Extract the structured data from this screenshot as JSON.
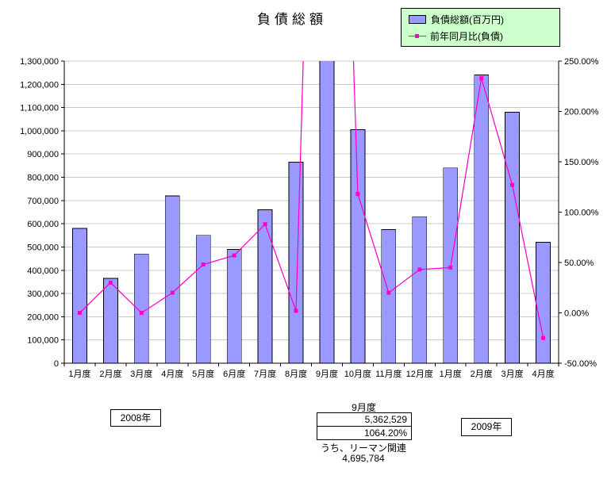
{
  "title": "負債総額",
  "legend": {
    "items": [
      {
        "label": "負債総額(百万円)",
        "type": "bar",
        "color": "#9999ff"
      },
      {
        "label": "前年同月比(負債)",
        "type": "line",
        "color": "#ff00cc"
      }
    ]
  },
  "chart_data": {
    "type": "bar",
    "subtype": "bar-with-line-overlay",
    "title": "負債総額",
    "grid": true,
    "legend_position": "top-right",
    "categories": [
      "1月度",
      "2月度",
      "3月度",
      "4月度",
      "5月度",
      "6月度",
      "7月度",
      "8月度",
      "9月度",
      "10月度",
      "11月度",
      "12月度",
      "1月度",
      "2月度",
      "3月度",
      "4月度"
    ],
    "series": [
      {
        "name": "負債総額(百万円)",
        "type": "bar",
        "axis": "left",
        "color": "#9999ff",
        "values": [
          580000,
          365000,
          470000,
          720000,
          550000,
          490000,
          660000,
          865000,
          5362529,
          1005000,
          575000,
          630000,
          840000,
          1240000,
          1080000,
          520000
        ]
      },
      {
        "name": "前年同月比(負債)",
        "type": "line",
        "axis": "right",
        "color": "#ff00cc",
        "values": [
          0,
          30,
          0,
          20,
          48,
          57,
          88,
          2,
          1064.2,
          118,
          20,
          43,
          45,
          233,
          127,
          -25
        ]
      }
    ],
    "left_axis": {
      "min": 0,
      "max": 1300000,
      "step": 100000,
      "tick_labels": [
        "0",
        "100,000",
        "200,000",
        "300,000",
        "400,000",
        "500,000",
        "600,000",
        "700,000",
        "800,000",
        "900,000",
        "1,000,000",
        "1,100,000",
        "1,200,000",
        "1,300,000"
      ]
    },
    "right_axis": {
      "min": -50,
      "max": 250,
      "step": 50,
      "tick_labels": [
        "-50.00%",
        "0.00%",
        "50.00%",
        "100.00%",
        "150.00%",
        "200.00%",
        "250.00%"
      ]
    }
  },
  "annotations": {
    "left_year_box": "2008年",
    "right_year_box": "2009年",
    "callout": {
      "month": "9月度",
      "amount": "5,362,529",
      "pct": "1064.20%",
      "note_label": "うち、リーマン関連",
      "note_value": "4,695,784"
    }
  }
}
